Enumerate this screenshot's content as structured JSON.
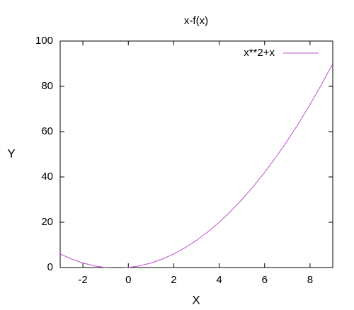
{
  "chart_data": {
    "type": "line",
    "title": "x-f(x)",
    "x_label": "X",
    "y_label": "Y",
    "x": [
      -3,
      -2.5,
      -2,
      -1.5,
      -1,
      -0.5,
      0,
      0.5,
      1,
      1.5,
      2,
      2.5,
      3,
      3.5,
      4,
      4.5,
      5,
      5.5,
      6,
      6.5,
      7,
      7.5,
      8,
      8.5,
      9
    ],
    "series": [
      {
        "name": "x**2+x",
        "color": "#c04ed0",
        "values": [
          6,
          3.75,
          2,
          0.75,
          0,
          -0.25,
          0,
          0.75,
          2,
          3.75,
          6,
          8.75,
          12,
          15.75,
          20,
          24.75,
          30,
          35.75,
          42,
          48.75,
          56,
          63.75,
          72,
          80.75,
          90
        ]
      }
    ],
    "xlim": [
      -3,
      9
    ],
    "xticks": [
      -2,
      0,
      2,
      4,
      6,
      8
    ],
    "ylim": [
      0,
      100
    ],
    "yticks": [
      0,
      20,
      40,
      60,
      80,
      100
    ],
    "grid": false,
    "legend": "top-right"
  }
}
